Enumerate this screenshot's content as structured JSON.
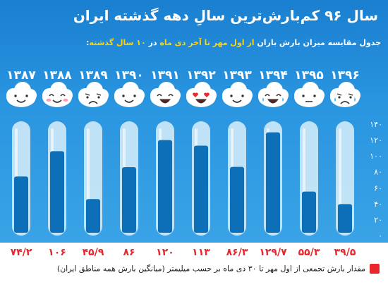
{
  "title": "سال ۹۶ کم‌بارش‌ترین سالِ دهه گذشته ایران",
  "subtitle_parts": [
    {
      "text": "جدول مقایسه میزان بارش باران ",
      "highlight": false
    },
    {
      "text": "از اول مهر تا آخر دی ماه",
      "highlight": true
    },
    {
      "text": " در ",
      "highlight": false
    },
    {
      "text": "۱۰ سال گذشته",
      "highlight": true
    },
    {
      "text": ":",
      "highlight": false
    }
  ],
  "legend": "مقدار بارش تجمعی از اول مهر تا ۳۰ دی ماه بر حسب میلیمتر (میانگین بارش همه مناطق ایران)",
  "colors": {
    "background_top": "#2a8fdc",
    "bar_fill": "#0d6fb8",
    "tube_glass": "#d9eef9",
    "value_label": "#e8262b",
    "year_label": "#ffffff",
    "legend_swatch": "#e8262b"
  },
  "chart_data": {
    "type": "bar",
    "title": "",
    "xlabel": "",
    "ylabel": "",
    "ylim": [
      0,
      140
    ],
    "y_ticks": [
      "۰",
      "۲۰",
      "۴۰",
      "۶۰",
      "۸۰",
      "۱۰۰",
      "۱۲۰",
      "۱۴۰"
    ],
    "y_tick_values": [
      0,
      20,
      40,
      60,
      80,
      100,
      120,
      140
    ],
    "categories": [
      "۱۳۸۷",
      "۱۳۸۸",
      "۱۳۸۹",
      "۱۳۹۰",
      "۱۳۹۱",
      "۱۳۹۲",
      "۱۳۹۳",
      "۱۳۹۴",
      "۱۳۹۵",
      "۱۳۹۶"
    ],
    "values": [
      74.2,
      106,
      45.9,
      86,
      120,
      113,
      86.3,
      129.7,
      55.3,
      39.5
    ],
    "value_labels": [
      "۷۴/۲",
      "۱۰۶",
      "۴۵/۹",
      "۸۶",
      "۱۲۰",
      "۱۱۳",
      "۸۶/۳",
      "۱۲۹/۷",
      "۵۵/۳",
      "۳۹/۵"
    ],
    "icons": [
      "smile-cloud-icon",
      "blush-cloud-icon",
      "sad-cloud-icon",
      "happy-cloud-icon",
      "grin-cloud-icon",
      "heart-eyes-cloud-icon",
      "smile-cloud-icon",
      "laugh-tears-cloud-icon",
      "neutral-cloud-icon",
      "crying-cloud-icon"
    ],
    "grid": false,
    "legend_position": "bottom"
  }
}
